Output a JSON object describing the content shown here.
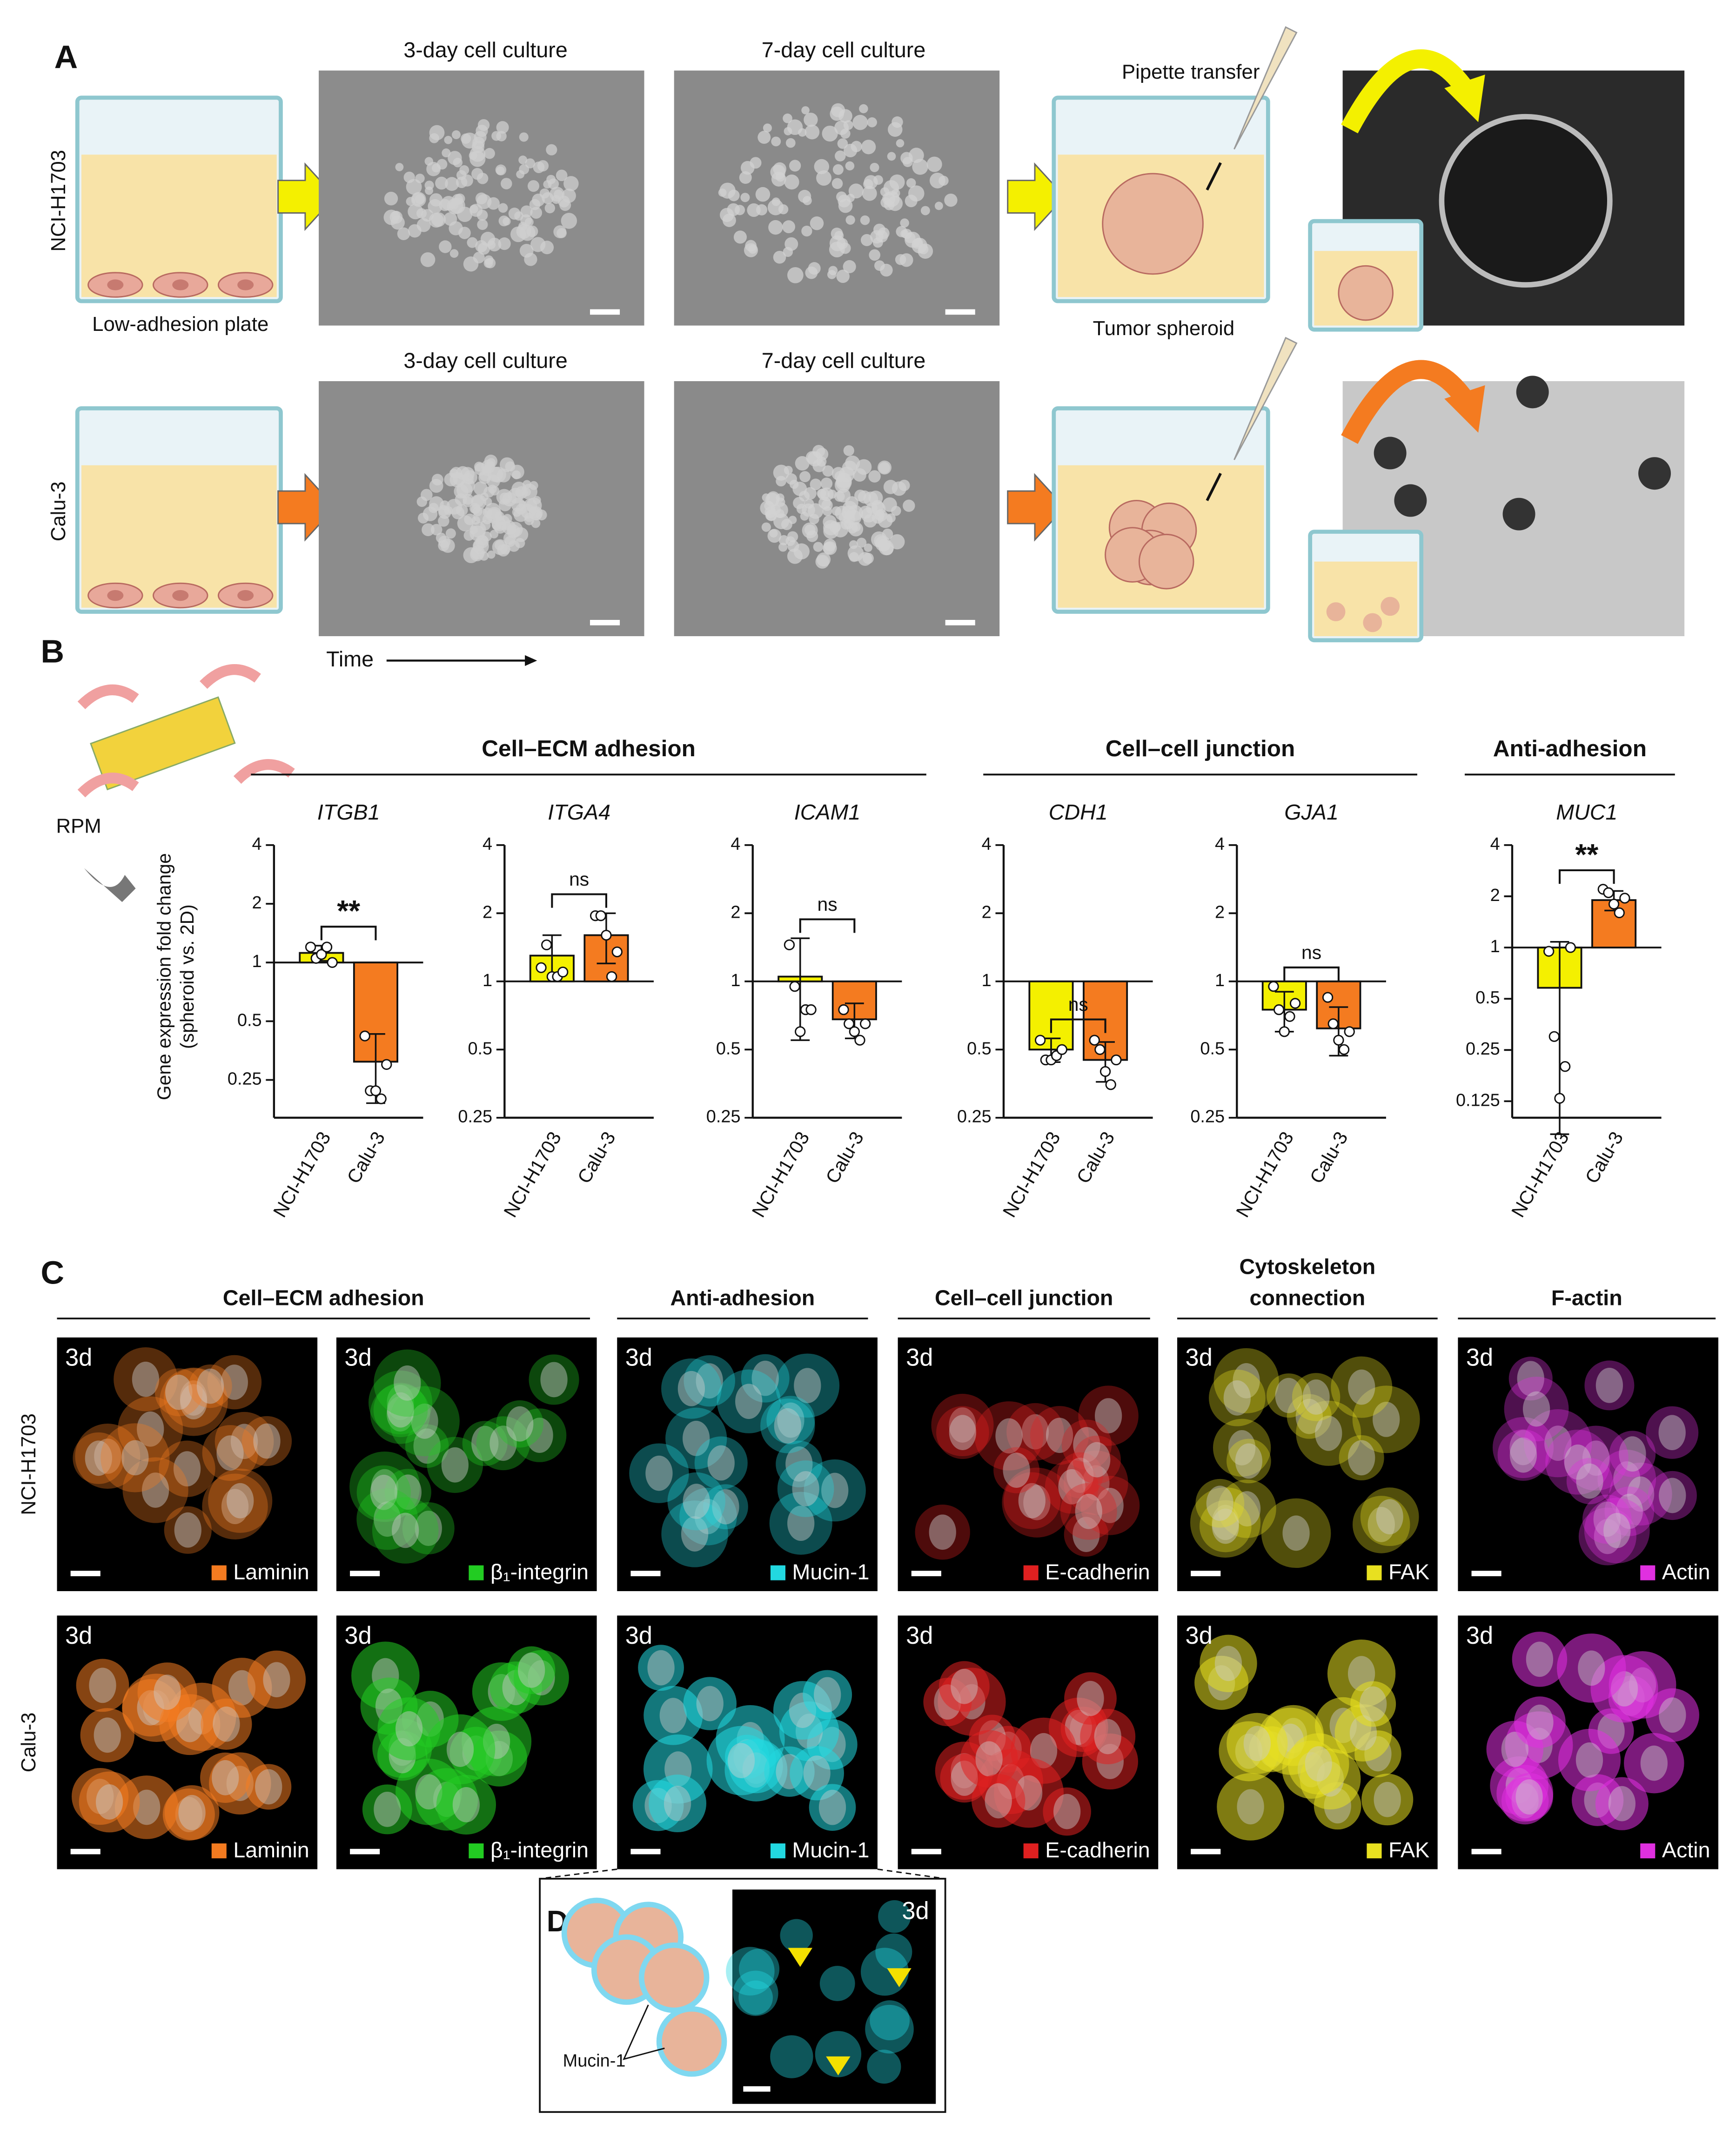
{
  "panel_a": {
    "label": "A",
    "rows": [
      {
        "name": "NCI-H1703",
        "day3": "3-day cell culture",
        "day7": "7-day cell culture"
      },
      {
        "name": "Calu-3",
        "day3": "3-day cell culture",
        "day7": "7-day cell culture"
      }
    ],
    "plate_label": "Low-adhesion plate",
    "pipette_label": "Pipette transfer",
    "spheroid_label": "Tumor spheroid",
    "time_label": "Time"
  },
  "panel_b": {
    "label": "B",
    "rpm_label": "RPM",
    "y_label": [
      "Gene expression fold change",
      "(spheroid vs. 2D)"
    ],
    "groups": [
      "Cell–ECM adhesion",
      "Cell–cell junction",
      "Anti-adhesion"
    ]
  },
  "chart_data": [
    {
      "type": "bar",
      "title": "ITGB1",
      "categories": [
        "NCI-H1703",
        "Calu-3"
      ],
      "values": [
        1.12,
        0.31
      ],
      "errors": [
        0.1,
        0.12
      ],
      "points": [
        [
          1.2,
          1.05,
          1.1,
          1.2,
          1.0
        ],
        [
          0.42,
          0.22,
          0.22,
          0.2,
          0.3
        ]
      ],
      "colors": [
        "#f4f000",
        "#f47b20"
      ],
      "significance": "**",
      "ylim": [
        0.16,
        4
      ],
      "yticks": [
        0.25,
        0.5,
        1,
        2,
        4
      ],
      "log_base": 2,
      "baseline": 1
    },
    {
      "type": "bar",
      "title": "ITGA4",
      "categories": [
        "NCI-H1703",
        "Calu-3"
      ],
      "values": [
        1.3,
        1.6
      ],
      "errors": [
        0.3,
        0.4
      ],
      "points": [
        [
          1.15,
          1.45,
          1.05,
          1.05,
          1.1
        ],
        [
          1.95,
          1.95,
          1.6,
          1.05,
          1.35
        ]
      ],
      "colors": [
        "#f4f000",
        "#f47b20"
      ],
      "significance": "ns",
      "ylim": [
        0.25,
        4
      ],
      "yticks": [
        0.25,
        0.5,
        1,
        2,
        4
      ],
      "log_base": 2,
      "baseline": 1
    },
    {
      "type": "bar",
      "title": "ICAM1",
      "categories": [
        "NCI-H1703",
        "Calu-3"
      ],
      "values": [
        1.05,
        0.68
      ],
      "errors": [
        0.5,
        0.12
      ],
      "points": [
        [
          1.45,
          0.95,
          0.6,
          0.75,
          0.75
        ],
        [
          0.75,
          0.65,
          0.6,
          0.55,
          0.65
        ]
      ],
      "colors": [
        "#f4f000",
        "#f47b20"
      ],
      "significance": "ns",
      "ylim": [
        0.25,
        4
      ],
      "yticks": [
        0.25,
        0.5,
        1,
        2,
        4
      ],
      "log_base": 2,
      "baseline": 1
    },
    {
      "type": "bar",
      "title": "CDH1",
      "categories": [
        "NCI-H1703",
        "Calu-3"
      ],
      "values": [
        0.5,
        0.45
      ],
      "errors": [
        0.06,
        0.09
      ],
      "points": [
        [
          0.55,
          0.45,
          0.45,
          0.47,
          0.5
        ],
        [
          0.55,
          0.5,
          0.4,
          0.35,
          0.45
        ]
      ],
      "colors": [
        "#f4f000",
        "#f47b20"
      ],
      "significance": "ns",
      "ylim": [
        0.25,
        4
      ],
      "yticks": [
        0.25,
        0.5,
        1,
        2,
        4
      ],
      "log_base": 2,
      "baseline": 1
    },
    {
      "type": "bar",
      "title": "GJA1",
      "categories": [
        "NCI-H1703",
        "Calu-3"
      ],
      "values": [
        0.75,
        0.62
      ],
      "errors": [
        0.15,
        0.15
      ],
      "points": [
        [
          0.95,
          0.75,
          0.6,
          0.7,
          0.8
        ],
        [
          0.85,
          0.65,
          0.55,
          0.5,
          0.6
        ]
      ],
      "colors": [
        "#f4f000",
        "#f47b20"
      ],
      "significance": "ns",
      "ylim": [
        0.25,
        4
      ],
      "yticks": [
        0.25,
        0.5,
        1,
        2,
        4
      ],
      "log_base": 2,
      "baseline": 1
    },
    {
      "type": "bar",
      "title": "MUC1",
      "categories": [
        "NCI-H1703",
        "Calu-3"
      ],
      "values": [
        0.58,
        1.9
      ],
      "errors": [
        0.5,
        0.25
      ],
      "points": [
        [
          0.95,
          0.3,
          0.13,
          0.2,
          1.0
        ],
        [
          2.2,
          2.1,
          1.8,
          1.6,
          1.95
        ]
      ],
      "colors": [
        "#f4f000",
        "#f47b20"
      ],
      "significance": "**",
      "ylim": [
        0.1,
        4
      ],
      "yticks": [
        0.125,
        0.25,
        0.5,
        1,
        2,
        4
      ],
      "log_base": 2,
      "baseline": 1
    }
  ],
  "panel_c": {
    "label": "C",
    "headers": [
      [
        "Cell–ECM adhesion"
      ],
      [
        "Anti-adhesion"
      ],
      [
        "Cell–cell junction"
      ],
      [
        "Cytoskeleton",
        "connection"
      ],
      [
        "F-actin"
      ]
    ],
    "columns": [
      {
        "marker": "Laminin",
        "color": "#f47b20"
      },
      {
        "marker": "β₁-integrin",
        "color": "#22cc22"
      },
      {
        "marker": "Mucin-1",
        "color": "#22d8e0"
      },
      {
        "marker": "E-cadherin",
        "color": "#e02020"
      },
      {
        "marker": "FAK",
        "color": "#e8e020"
      },
      {
        "marker": "Actin",
        "color": "#e030e0"
      }
    ],
    "rows": [
      {
        "name": "NCI-H1703",
        "time": "3d"
      },
      {
        "name": "Calu-3",
        "time": "3d"
      }
    ]
  },
  "panel_d": {
    "label": "D",
    "marker": "Mucin-1",
    "time": "3d"
  }
}
